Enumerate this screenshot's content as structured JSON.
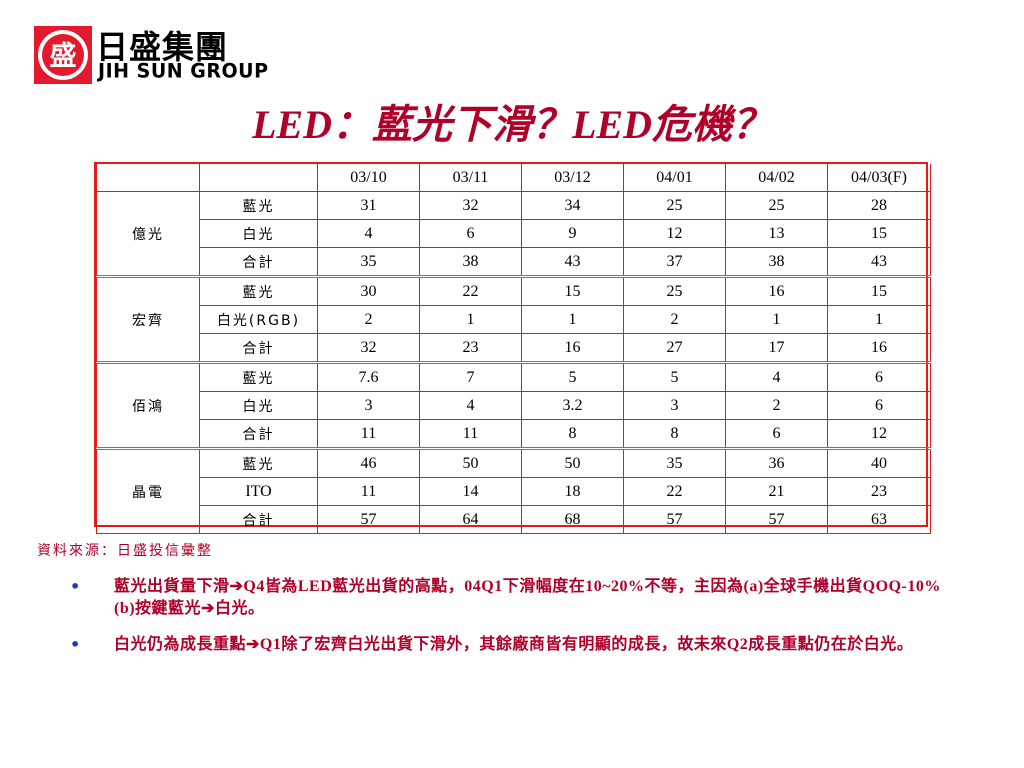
{
  "logo": {
    "emblem_char": "盛",
    "name_cn": "日盛集團",
    "name_en": "JIH SUN GROUP",
    "emblem_color": "#e21a2c"
  },
  "title": "LED：藍光下滑？LED危機？",
  "table": {
    "header": [
      "",
      "",
      "03/10",
      "03/11",
      "03/12",
      "04/01",
      "04/02",
      "04/03(F)"
    ],
    "groups": [
      {
        "name": "億光",
        "rows": [
          {
            "label": "藍光",
            "values": [
              "31",
              "32",
              "34",
              "25",
              "25",
              "28"
            ]
          },
          {
            "label": "白光",
            "values": [
              "4",
              "6",
              "9",
              "12",
              "13",
              "15"
            ]
          },
          {
            "label": "合計",
            "values": [
              "35",
              "38",
              "43",
              "37",
              "38",
              "43"
            ]
          }
        ]
      },
      {
        "name": "宏齊",
        "rows": [
          {
            "label": "藍光",
            "values": [
              "30",
              "22",
              "15",
              "25",
              "16",
              "15"
            ]
          },
          {
            "label": "白光(RGB)",
            "values": [
              "2",
              "1",
              "1",
              "2",
              "1",
              "1"
            ]
          },
          {
            "label": "合計",
            "values": [
              "32",
              "23",
              "16",
              "27",
              "17",
              "16"
            ]
          }
        ]
      },
      {
        "name": "佰鴻",
        "rows": [
          {
            "label": "藍光",
            "values": [
              "7.6",
              "7",
              "5",
              "5",
              "4",
              "6"
            ]
          },
          {
            "label": "白光",
            "values": [
              "3",
              "4",
              "3.2",
              "3",
              "2",
              "6"
            ]
          },
          {
            "label": "合計",
            "values": [
              "11",
              "11",
              "8",
              "8",
              "6",
              "12"
            ]
          }
        ]
      },
      {
        "name": "晶電",
        "rows": [
          {
            "label": "藍光",
            "values": [
              "46",
              "50",
              "50",
              "35",
              "36",
              "40"
            ]
          },
          {
            "label": "ITO",
            "values": [
              "11",
              "14",
              "18",
              "22",
              "21",
              "23"
            ]
          },
          {
            "label": "合計",
            "values": [
              "57",
              "64",
              "68",
              "57",
              "57",
              "63"
            ]
          }
        ]
      }
    ]
  },
  "source": "資料來源：日盛投信彙整",
  "bullets": [
    {
      "marker": "•",
      "text": "藍光出貨量下滑➔Q4皆為LED藍光出貨的高點，04Q1下滑幅度在10~20%不等，主因為(a)全球手機出貨QOQ-10%(b)按鍵藍光➔白光。"
    },
    {
      "marker": "•",
      "text": "白光仍為成長重點➔Q1除了宏齊白光出貨下滑外，其餘廠商皆有明顯的成長，故未來Q2成長重點仍在於白光。"
    }
  ],
  "colors": {
    "title": "#b0002a",
    "table_border": "#e21a1a",
    "group_separator": "#5a73d8",
    "bullet_marker": "#1a3cc9"
  }
}
